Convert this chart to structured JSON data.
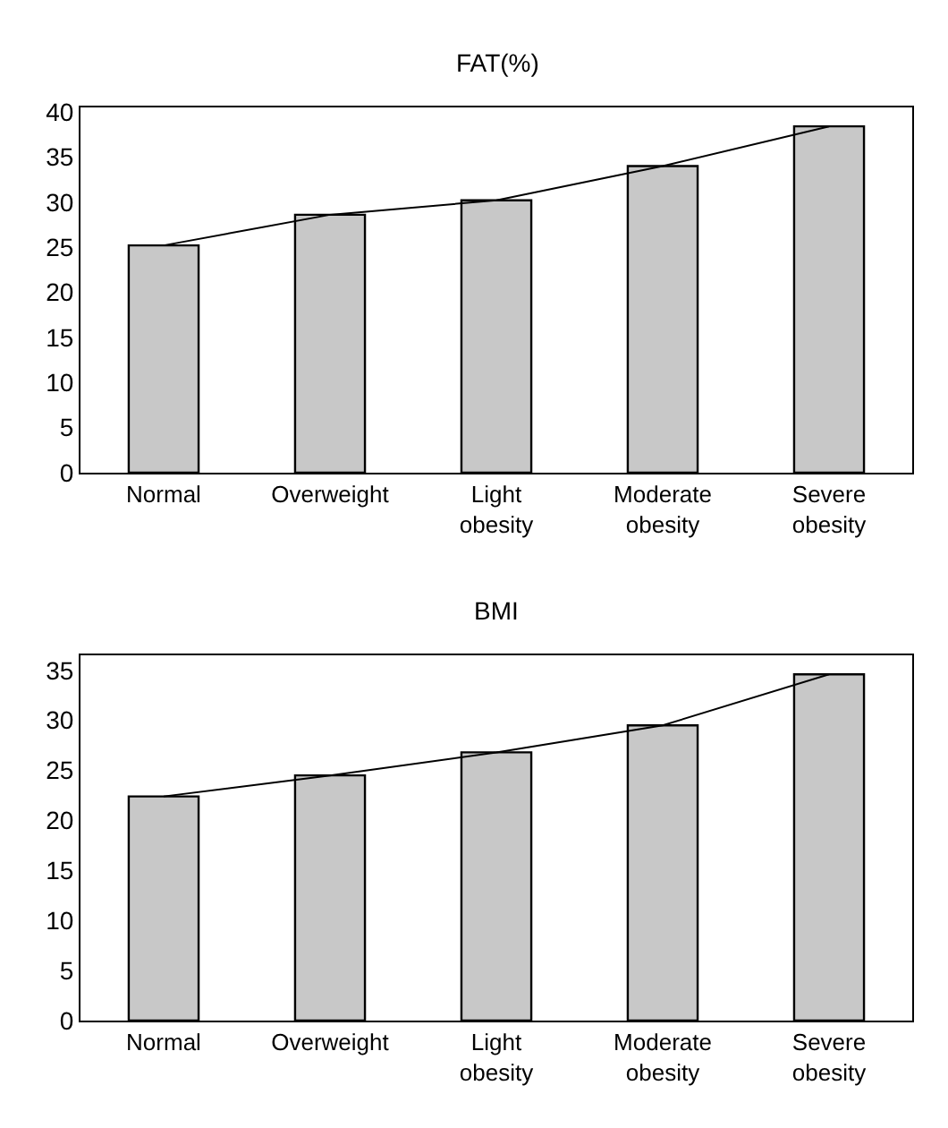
{
  "chart_data": [
    {
      "type": "bar",
      "title": "FAT(%)",
      "categories": [
        "Normal",
        "Overweight",
        "Light obesity",
        "Moderate obesity",
        "Severe obesity"
      ],
      "ylim": [
        0,
        40.5
      ],
      "yticks": [
        0,
        5,
        10,
        15,
        20,
        25,
        30,
        35,
        40
      ],
      "series": [
        {
          "color": "#c8c8c8",
          "values": [
            25.2,
            28.6,
            30.2,
            34.0,
            38.4
          ]
        },
        {
          "type": "line",
          "color": "#000000",
          "marker": "none",
          "values": [
            25.2,
            28.6,
            30.2,
            34.0,
            38.4
          ]
        }
      ]
    },
    {
      "type": "bar",
      "title": "BMI",
      "categories": [
        "Normal",
        "Overweight",
        "Light obesity",
        "Moderate obesity",
        "Severe obesity"
      ],
      "ylim": [
        0,
        36.5
      ],
      "yticks": [
        0,
        5,
        10,
        15,
        20,
        25,
        30,
        35
      ],
      "series": [
        {
          "color": "#c8c8c8",
          "values": [
            22.4,
            24.5,
            26.8,
            29.5,
            34.6
          ]
        },
        {
          "type": "line",
          "color": "#000000",
          "marker": "none",
          "values": [
            22.4,
            24.5,
            26.8,
            29.5,
            34.6
          ]
        }
      ]
    }
  ]
}
